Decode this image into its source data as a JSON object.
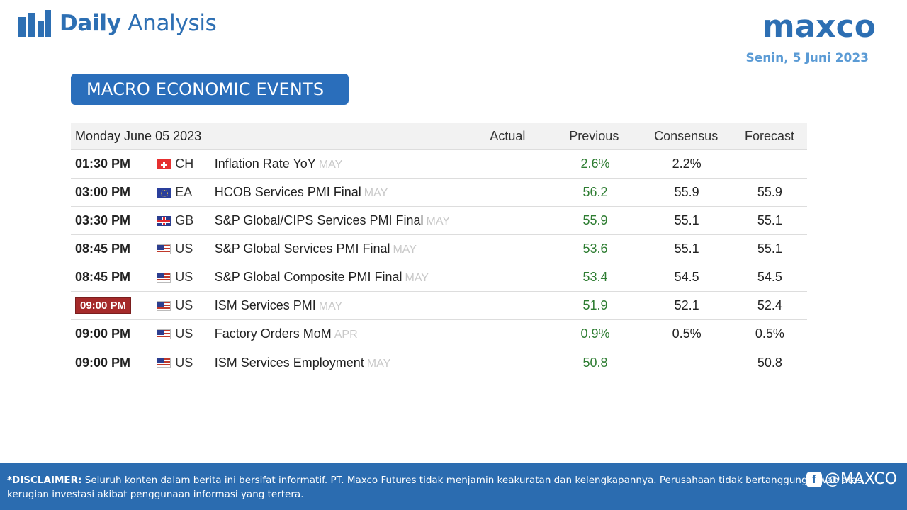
{
  "header": {
    "brand_bold": "Daily",
    "brand_light": "Analysis",
    "logo": "maxco",
    "date": "Senin, 5 Juni 2023"
  },
  "section_title": "MACRO ECONOMIC EVENTS",
  "table": {
    "date_heading": "Monday June 05 2023",
    "columns": {
      "actual": "Actual",
      "previous": "Previous",
      "consensus": "Consensus",
      "forecast": "Forecast"
    },
    "rows": [
      {
        "time": "01:30 PM",
        "flag": "flag-ch",
        "country": "CH",
        "event": "Inflation Rate YoY",
        "ref": "MAY",
        "actual": "",
        "previous": "2.6%",
        "consensus": "2.2%",
        "forecast": ""
      },
      {
        "time": "03:00 PM",
        "flag": "flag-ea",
        "country": "EA",
        "event": "HCOB Services PMI Final",
        "ref": "MAY",
        "actual": "",
        "previous": "56.2",
        "consensus": "55.9",
        "forecast": "55.9"
      },
      {
        "time": "03:30 PM",
        "flag": "flag-gb",
        "country": "GB",
        "event": "S&P Global/CIPS Services PMI Final",
        "ref": "MAY",
        "actual": "",
        "previous": "55.9",
        "consensus": "55.1",
        "forecast": "55.1"
      },
      {
        "time": "08:45 PM",
        "flag": "flag-us",
        "country": "US",
        "event": "S&P Global Services PMI Final",
        "ref": "MAY",
        "actual": "",
        "previous": "53.6",
        "consensus": "55.1",
        "forecast": "55.1"
      },
      {
        "time": "08:45 PM",
        "flag": "flag-us",
        "country": "US",
        "event": "S&P Global Composite PMI Final",
        "ref": "MAY",
        "actual": "",
        "previous": "53.4",
        "consensus": "54.5",
        "forecast": "54.5"
      },
      {
        "time": "09:00 PM",
        "flag": "flag-us",
        "country": "US",
        "event": "ISM Services PMI",
        "ref": "MAY",
        "actual": "",
        "previous": "51.9",
        "consensus": "52.1",
        "forecast": "52.4",
        "highlight": true
      },
      {
        "time": "09:00 PM",
        "flag": "flag-us",
        "country": "US",
        "event": "Factory Orders MoM",
        "ref": "APR",
        "actual": "",
        "previous": "0.9%",
        "consensus": "0.5%",
        "forecast": "0.5%"
      },
      {
        "time": "09:00 PM",
        "flag": "flag-us",
        "country": "US",
        "event": "ISM Services Employment",
        "ref": "MAY",
        "actual": "",
        "previous": "50.8",
        "consensus": "",
        "forecast": "50.8"
      }
    ]
  },
  "footer": {
    "disclaimer_label": "*DISCLAIMER:",
    "disclaimer_text": "Seluruh konten dalam berita ini bersifat informatif. PT. Maxco Futures tidak menjamin keakuratan dan kelengkapannya. Perusahaan tidak bertanggung jawab atas kerugian investasi akibat penggunaan informasi yang tertera.",
    "social_handle": "@MAXCO"
  },
  "colors": {
    "brand_blue": "#2d6fb3",
    "badge_blue": "#2a6ebb",
    "previous_green": "#2e7d32",
    "highlight_red": "#a52a2a",
    "footer_blue": "#2b6cb0"
  }
}
